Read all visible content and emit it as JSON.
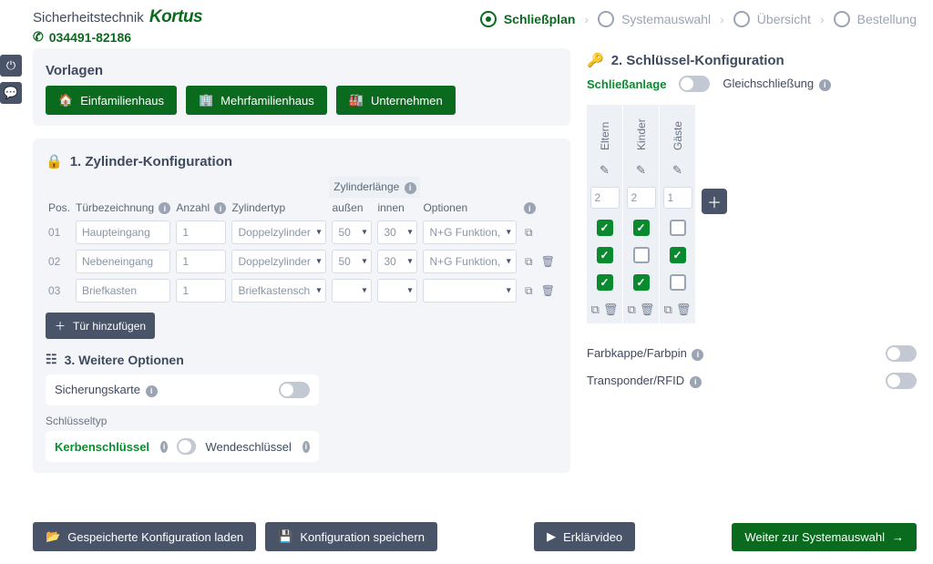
{
  "brand": {
    "prefix": "Sicherheitstechnik",
    "name": "Kortus",
    "phone": "034491-82186"
  },
  "stepper": {
    "s1": "Schließplan",
    "s2": "Systemauswahl",
    "s3": "Übersicht",
    "s4": "Bestellung"
  },
  "templates": {
    "title": "Vorlagen",
    "b1": "Einfamilienhaus",
    "b2": "Mehrfamilienhaus",
    "b3": "Unternehmen"
  },
  "cyl": {
    "title": "1. Zylinder-Konfiguration",
    "hdr": {
      "pos": "Pos.",
      "door": "Türbezeichnung",
      "qty": "Anzahl",
      "type": "Zylindertyp",
      "span": "Zylinderlänge",
      "outer": "außen",
      "inner": "innen",
      "opts": "Optionen"
    },
    "rows": [
      {
        "pos": "01",
        "door": "Haupteingang",
        "qty": "1",
        "type": "Doppelzylinder",
        "outer": "50",
        "inner": "30",
        "opts": "N+G Funktion, ABH Kl.II"
      },
      {
        "pos": "02",
        "door": "Nebeneingang",
        "qty": "1",
        "type": "Doppelzylinder",
        "outer": "50",
        "inner": "30",
        "opts": "N+G Funktion, ABH Kl.II"
      },
      {
        "pos": "03",
        "door": "Briefkasten",
        "qty": "1",
        "type": "Briefkastensch...",
        "outer": "",
        "inner": "",
        "opts": ""
      }
    ],
    "add": "Tür hinzufügen"
  },
  "more": {
    "title": "3. Weitere Optionen",
    "card_label": "Sicherungskarte",
    "keytype_label": "Schlüsseltyp",
    "ka": "Kerbenschlüssel",
    "kb": "Wendeschlüssel"
  },
  "keys": {
    "title": "2. Schlüssel-Konfiguration",
    "mode_a": "Schließanlage",
    "mode_b": "Gleichschließung",
    "cols": [
      {
        "name": "Eltern",
        "qty": "2",
        "cells": [
          true,
          true,
          true
        ]
      },
      {
        "name": "Kinder",
        "qty": "2",
        "cells": [
          true,
          false,
          true
        ]
      },
      {
        "name": "Gäste",
        "qty": "1",
        "cells": [
          false,
          true,
          false
        ]
      }
    ],
    "opt1": "Farbkappe/Farbpin",
    "opt2": "Transponder/RFID"
  },
  "footer": {
    "load": "Gespeicherte Konfiguration laden",
    "save": "Konfiguration speichern",
    "video": "Erklärvideo",
    "next": "Weiter zur Systemauswahl"
  }
}
